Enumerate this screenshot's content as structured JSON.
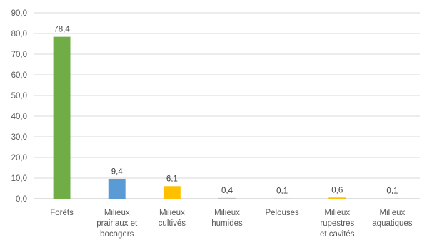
{
  "chart_data": {
    "type": "bar",
    "title": "",
    "xlabel": "",
    "ylabel": "",
    "ylim": [
      0,
      90
    ],
    "y_ticks": [
      "0,0",
      "10,0",
      "20,0",
      "30,0",
      "40,0",
      "50,0",
      "60,0",
      "70,0",
      "80,0",
      "90,0"
    ],
    "grid": true,
    "legend": "none",
    "categories": [
      [
        "Forêts"
      ],
      [
        "Milieux",
        "prairiaux et",
        "bocagers"
      ],
      [
        "Milieux",
        "cultivés"
      ],
      [
        "Milieux",
        "humides"
      ],
      [
        "Pelouses"
      ],
      [
        "Milieux",
        "rupestres",
        "et cavités"
      ],
      [
        "Milieux",
        "aquatiques"
      ]
    ],
    "values": [
      78.4,
      9.4,
      6.1,
      0.4,
      0.1,
      0.6,
      0.1
    ],
    "value_labels": [
      "78,4",
      "9,4",
      "6,1",
      "0,4",
      "0,1",
      "0,6",
      "0,1"
    ],
    "colors": [
      "#70ad47",
      "#5b9bd5",
      "#ffc000",
      "#c0c0c0",
      "#c0c0c0",
      "#ffc000",
      "#c0c0c0"
    ]
  }
}
